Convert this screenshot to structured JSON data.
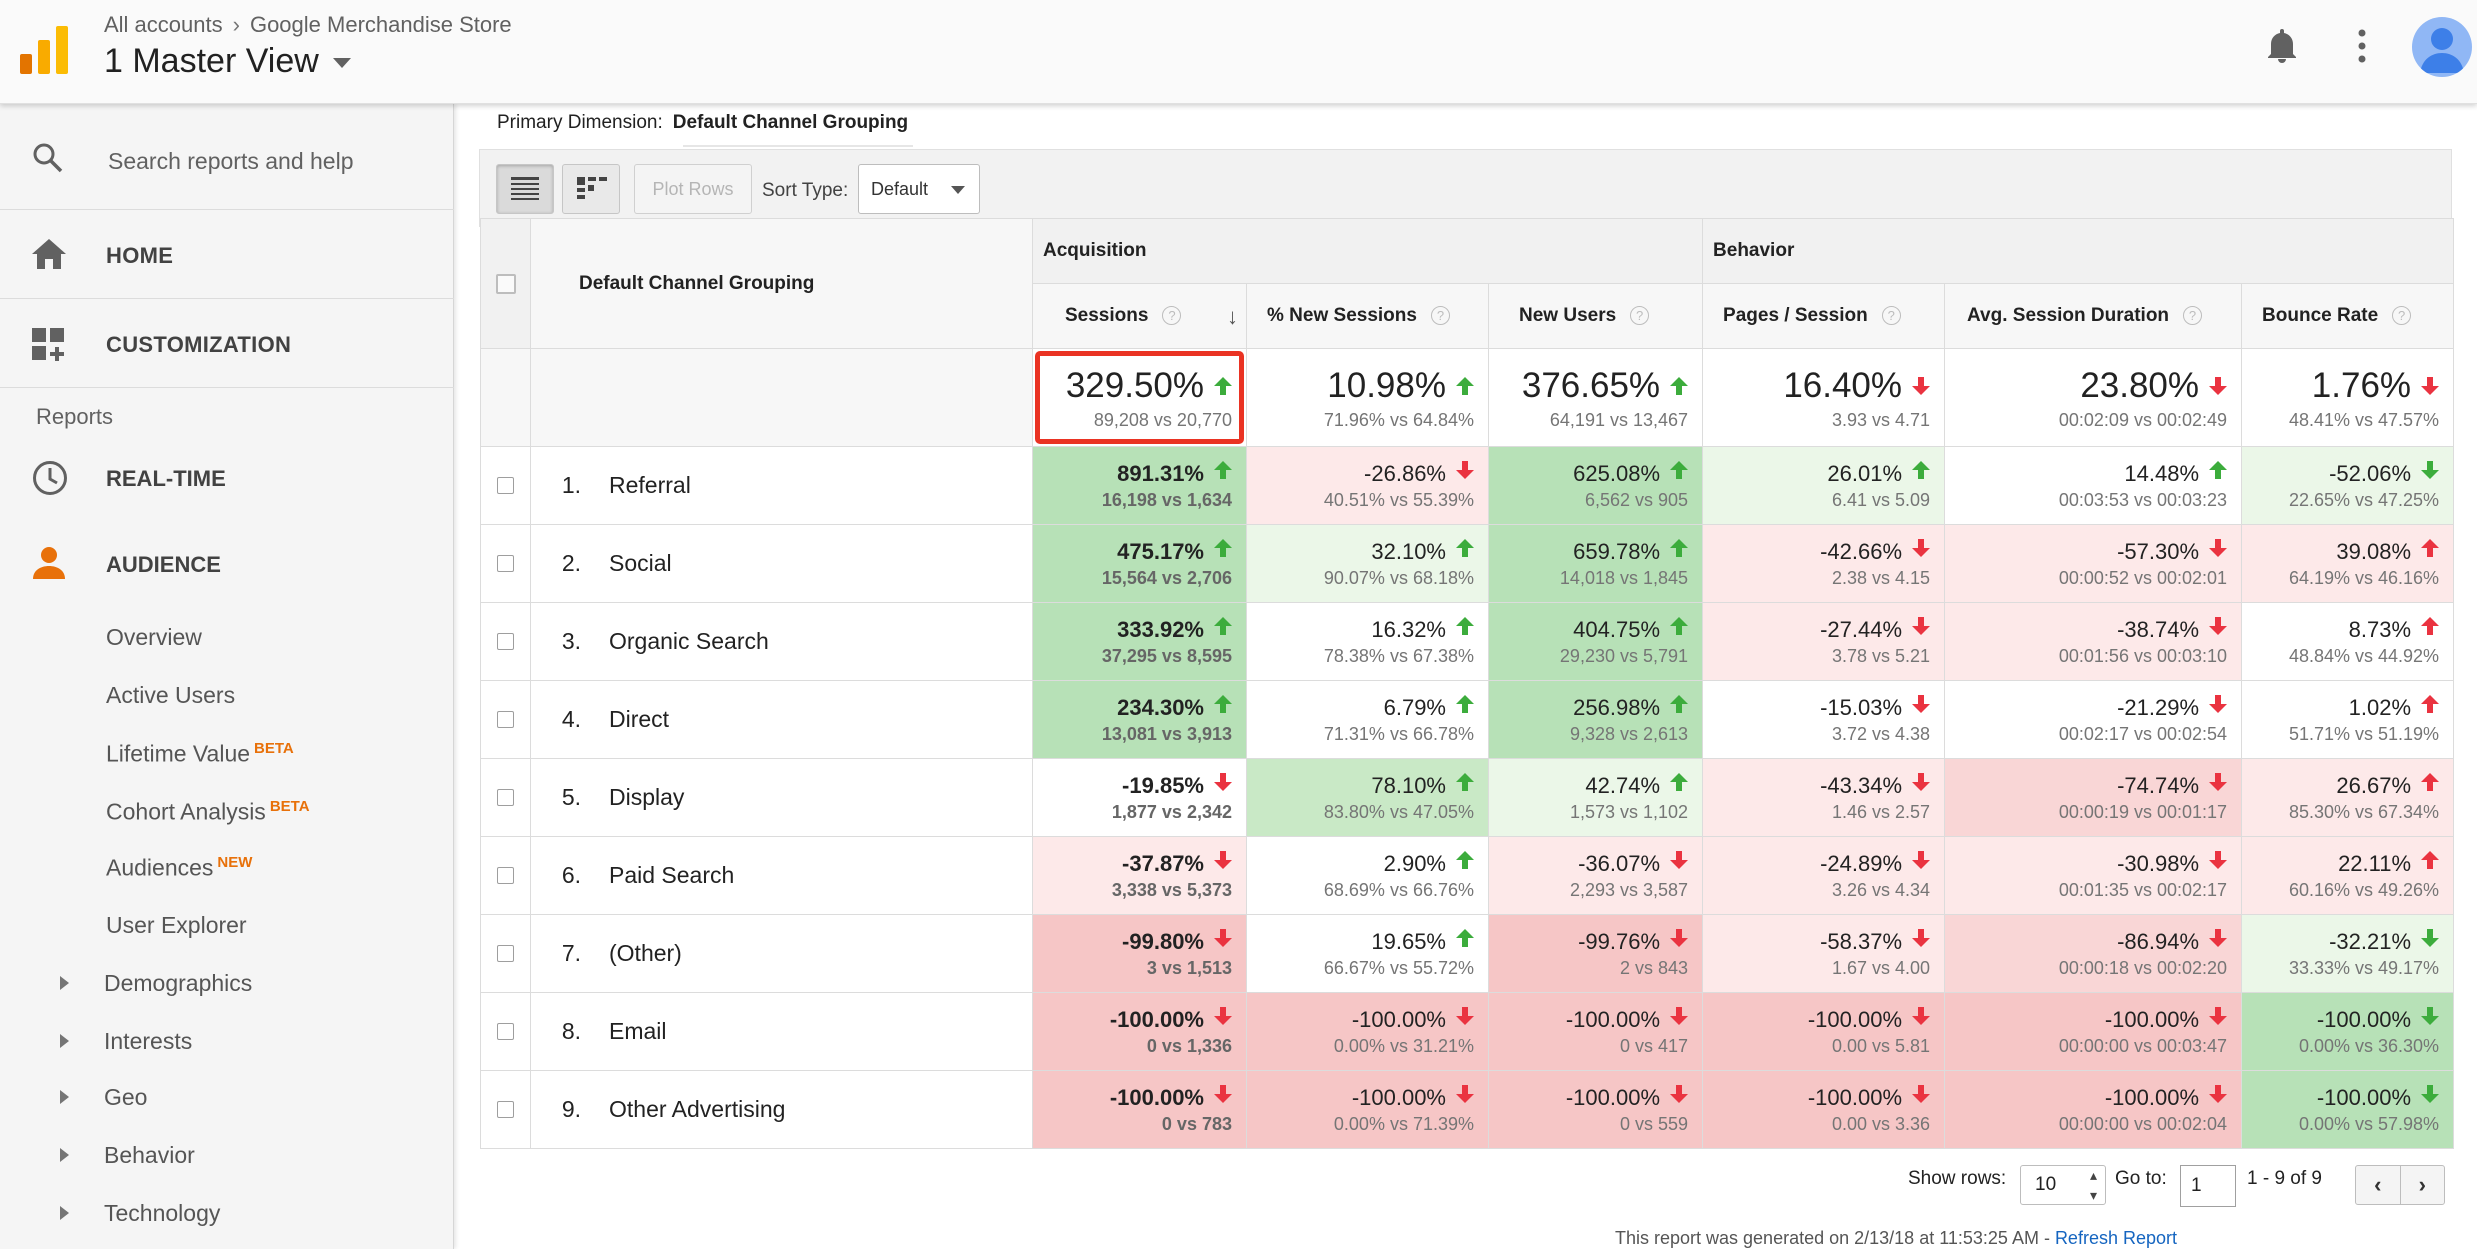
{
  "header": {
    "breadcrumb_root": "All accounts",
    "breadcrumb_property": "Google Merchandise Store",
    "view_title": "1 Master View"
  },
  "sidebar": {
    "search_placeholder": "Search reports and help",
    "home": "HOME",
    "customization": "CUSTOMIZATION",
    "reports_label": "Reports",
    "realtime": "REAL-TIME",
    "audience": "AUDIENCE",
    "audience_items": [
      "Overview",
      "Active Users",
      "Lifetime Value",
      "Cohort Analysis",
      "Audiences",
      "User Explorer"
    ],
    "badges": {
      "lifetime_value": "BETA",
      "cohort_analysis": "BETA",
      "audiences": "NEW"
    },
    "expandable_items": [
      "Demographics",
      "Interests",
      "Geo",
      "Behavior",
      "Technology"
    ],
    "accent_color": "#e8710a"
  },
  "report": {
    "primary_dimension_label": "Primary Dimension:",
    "primary_dimension_value": "Default Channel Grouping",
    "plot_rows": "Plot Rows",
    "sort_type_label": "Sort Type:",
    "sort_type_value": "Default",
    "group_acquisition": "Acquisition",
    "group_behavior": "Behavior",
    "dimension_header": "Default Channel Grouping",
    "columns": [
      "Sessions",
      "% New Sessions",
      "New Users",
      "Pages / Session",
      "Avg. Session Duration",
      "Bounce Rate"
    ],
    "help_glyph": "?",
    "totals": [
      {
        "value": "329.50%",
        "compare": "89,208 vs 20,770",
        "dir": "up"
      },
      {
        "value": "10.98%",
        "compare": "71.96% vs 64.84%",
        "dir": "up"
      },
      {
        "value": "376.65%",
        "compare": "64,191 vs 13,467",
        "dir": "up"
      },
      {
        "value": "16.40%",
        "compare": "3.93 vs 4.71",
        "dir": "down"
      },
      {
        "value": "23.80%",
        "compare": "00:02:09 vs 00:02:49",
        "dir": "down"
      },
      {
        "value": "1.76%",
        "compare": "48.41% vs 47.57%",
        "dir": "down"
      }
    ],
    "rows": [
      {
        "num": "1.",
        "name": "Referral",
        "cells": [
          {
            "v": "891.31%",
            "c": "16,198 vs 1,634",
            "d": "up",
            "s": "g3"
          },
          {
            "v": "-26.86%",
            "c": "40.51% vs 55.39%",
            "d": "down",
            "s": "r1"
          },
          {
            "v": "625.08%",
            "c": "6,562 vs 905",
            "d": "up",
            "s": "g3"
          },
          {
            "v": "26.01%",
            "c": "6.41 vs 5.09",
            "d": "up",
            "s": "g1"
          },
          {
            "v": "14.48%",
            "c": "00:03:53 vs 00:03:23",
            "d": "up",
            "s": "w"
          },
          {
            "v": "-52.06%",
            "c": "22.65% vs 47.25%",
            "d": "down-good",
            "s": "g1"
          }
        ]
      },
      {
        "num": "2.",
        "name": "Social",
        "cells": [
          {
            "v": "475.17%",
            "c": "15,564 vs 2,706",
            "d": "up",
            "s": "g3"
          },
          {
            "v": "32.10%",
            "c": "90.07% vs 68.18%",
            "d": "up",
            "s": "g1"
          },
          {
            "v": "659.78%",
            "c": "14,018 vs 1,845",
            "d": "up",
            "s": "g3"
          },
          {
            "v": "-42.66%",
            "c": "2.38 vs 4.15",
            "d": "down",
            "s": "r1"
          },
          {
            "v": "-57.30%",
            "c": "00:00:52 vs 00:02:01",
            "d": "down",
            "s": "r1"
          },
          {
            "v": "39.08%",
            "c": "64.19% vs 46.16%",
            "d": "up-bad",
            "s": "r1"
          }
        ]
      },
      {
        "num": "3.",
        "name": "Organic Search",
        "cells": [
          {
            "v": "333.92%",
            "c": "37,295 vs 8,595",
            "d": "up",
            "s": "g3"
          },
          {
            "v": "16.32%",
            "c": "78.38% vs 67.38%",
            "d": "up",
            "s": "w"
          },
          {
            "v": "404.75%",
            "c": "29,230 vs 5,791",
            "d": "up",
            "s": "g3"
          },
          {
            "v": "-27.44%",
            "c": "3.78 vs 5.21",
            "d": "down",
            "s": "r1"
          },
          {
            "v": "-38.74%",
            "c": "00:01:56 vs 00:03:10",
            "d": "down",
            "s": "r1"
          },
          {
            "v": "8.73%",
            "c": "48.84% vs 44.92%",
            "d": "up-bad",
            "s": "w"
          }
        ]
      },
      {
        "num": "4.",
        "name": "Direct",
        "cells": [
          {
            "v": "234.30%",
            "c": "13,081 vs 3,913",
            "d": "up",
            "s": "g3"
          },
          {
            "v": "6.79%",
            "c": "71.31% vs 66.78%",
            "d": "up",
            "s": "w"
          },
          {
            "v": "256.98%",
            "c": "9,328 vs 2,613",
            "d": "up",
            "s": "g3"
          },
          {
            "v": "-15.03%",
            "c": "3.72 vs 4.38",
            "d": "down",
            "s": "w"
          },
          {
            "v": "-21.29%",
            "c": "00:02:17 vs 00:02:54",
            "d": "down",
            "s": "w"
          },
          {
            "v": "1.02%",
            "c": "51.71% vs 51.19%",
            "d": "up-bad",
            "s": "w"
          }
        ]
      },
      {
        "num": "5.",
        "name": "Display",
        "cells": [
          {
            "v": "-19.85%",
            "c": "1,877 vs 2,342",
            "d": "down",
            "s": "w"
          },
          {
            "v": "78.10%",
            "c": "83.80% vs 47.05%",
            "d": "up",
            "s": "g2"
          },
          {
            "v": "42.74%",
            "c": "1,573 vs 1,102",
            "d": "up",
            "s": "g1"
          },
          {
            "v": "-43.34%",
            "c": "1.46 vs 2.57",
            "d": "down",
            "s": "r1"
          },
          {
            "v": "-74.74%",
            "c": "00:00:19 vs 00:01:17",
            "d": "down",
            "s": "r2"
          },
          {
            "v": "26.67%",
            "c": "85.30% vs 67.34%",
            "d": "up-bad",
            "s": "r1"
          }
        ]
      },
      {
        "num": "6.",
        "name": "Paid Search",
        "cells": [
          {
            "v": "-37.87%",
            "c": "3,338 vs 5,373",
            "d": "down",
            "s": "r1"
          },
          {
            "v": "2.90%",
            "c": "68.69% vs 66.76%",
            "d": "up",
            "s": "w"
          },
          {
            "v": "-36.07%",
            "c": "2,293 vs 3,587",
            "d": "down",
            "s": "r1"
          },
          {
            "v": "-24.89%",
            "c": "3.26 vs 4.34",
            "d": "down",
            "s": "r1"
          },
          {
            "v": "-30.98%",
            "c": "00:01:35 vs 00:02:17",
            "d": "down",
            "s": "r1"
          },
          {
            "v": "22.11%",
            "c": "60.16% vs 49.26%",
            "d": "up-bad",
            "s": "r1"
          }
        ]
      },
      {
        "num": "7.",
        "name": "(Other)",
        "cells": [
          {
            "v": "-99.80%",
            "c": "3 vs 1,513",
            "d": "down",
            "s": "r3"
          },
          {
            "v": "19.65%",
            "c": "66.67% vs 55.72%",
            "d": "up",
            "s": "w"
          },
          {
            "v": "-99.76%",
            "c": "2 vs 843",
            "d": "down",
            "s": "r3"
          },
          {
            "v": "-58.37%",
            "c": "1.67 vs 4.00",
            "d": "down",
            "s": "r1"
          },
          {
            "v": "-86.94%",
            "c": "00:00:18 vs 00:02:20",
            "d": "down",
            "s": "r2"
          },
          {
            "v": "-32.21%",
            "c": "33.33% vs 49.17%",
            "d": "down-good",
            "s": "g1"
          }
        ]
      },
      {
        "num": "8.",
        "name": "Email",
        "cells": [
          {
            "v": "-100.00%",
            "c": "0 vs 1,336",
            "d": "down",
            "s": "r3"
          },
          {
            "v": "-100.00%",
            "c": "0.00% vs 31.21%",
            "d": "down",
            "s": "r3"
          },
          {
            "v": "-100.00%",
            "c": "0 vs 417",
            "d": "down",
            "s": "r3"
          },
          {
            "v": "-100.00%",
            "c": "0.00 vs 5.81",
            "d": "down",
            "s": "r3"
          },
          {
            "v": "-100.00%",
            "c": "00:00:00 vs 00:03:47",
            "d": "down",
            "s": "r3"
          },
          {
            "v": "-100.00%",
            "c": "0.00% vs 36.30%",
            "d": "down-good",
            "s": "g3"
          }
        ]
      },
      {
        "num": "9.",
        "name": "Other Advertising",
        "cells": [
          {
            "v": "-100.00%",
            "c": "0 vs 783",
            "d": "down",
            "s": "r3"
          },
          {
            "v": "-100.00%",
            "c": "0.00% vs 71.39%",
            "d": "down",
            "s": "r3"
          },
          {
            "v": "-100.00%",
            "c": "0 vs 559",
            "d": "down",
            "s": "r3"
          },
          {
            "v": "-100.00%",
            "c": "0.00 vs 3.36",
            "d": "down",
            "s": "r3"
          },
          {
            "v": "-100.00%",
            "c": "00:00:00 vs 00:02:04",
            "d": "down",
            "s": "r3"
          },
          {
            "v": "-100.00%",
            "c": "0.00% vs 57.98%",
            "d": "down-good",
            "s": "g3"
          }
        ]
      }
    ],
    "colors": {
      "up": "#3cac3c",
      "down": "#ea3340",
      "highlight": "#ea3323"
    }
  },
  "footer": {
    "show_rows_label": "Show rows:",
    "show_rows_value": "10",
    "goto_label": "Go to:",
    "goto_value": "1",
    "range": "1 - 9 of 9",
    "generated": "This report was generated on 2/13/18 at 11:53:25 AM - ",
    "refresh": "Refresh Report"
  }
}
